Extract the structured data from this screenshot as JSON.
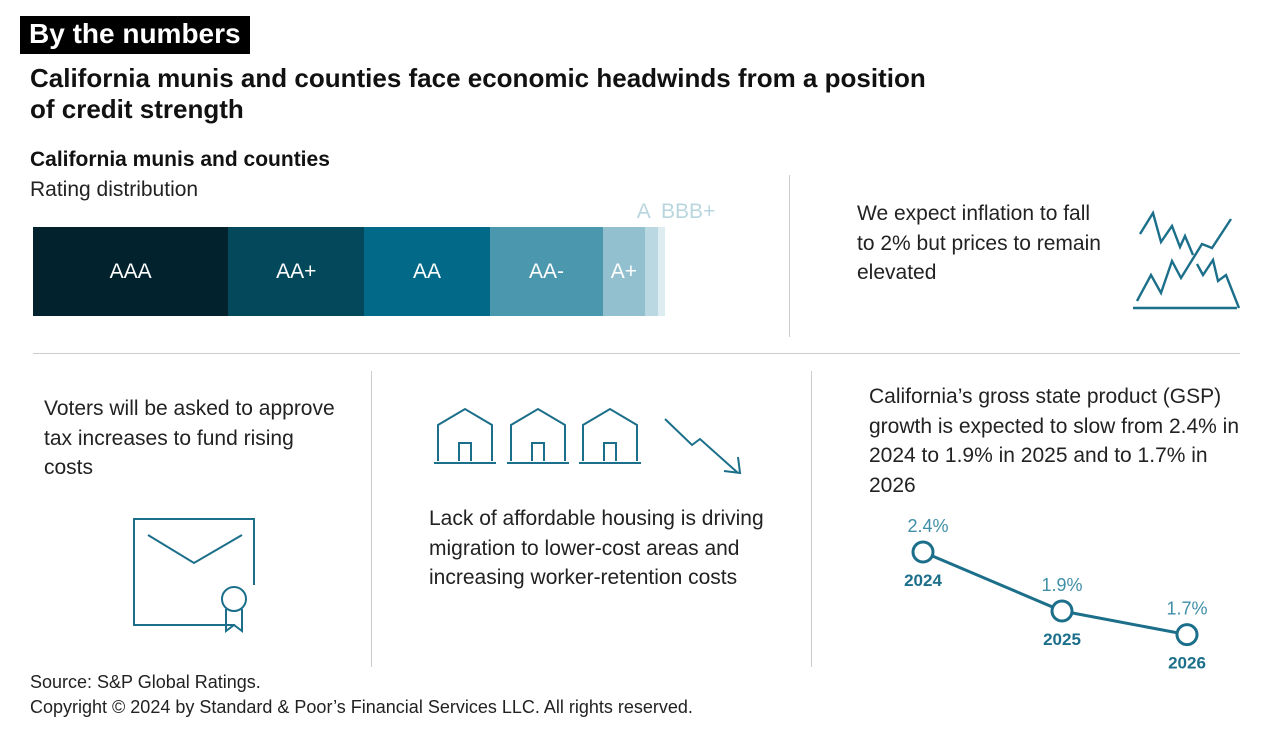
{
  "tag": "By the numbers",
  "headline": "California munis and counties face economic headwinds from a position of credit strength",
  "rating": {
    "title": "California munis and counties",
    "subtitle": "Rating distribution"
  },
  "inflation_text": "We expect inflation to fall to 2% but prices to remain elevated",
  "voters_text": "Voters will be asked to approve tax increases to fund rising costs",
  "housing_text": "Lack of affordable housing is driving migration to lower-cost areas and increasing worker-retention costs",
  "gsp_text": "California’s gross state product (GSP) growth is expected to slow from 2.4% in 2024 to 1.9% in 2025 and to 1.7% in 2026",
  "footer": {
    "source": "Source: S&P Global Ratings.",
    "copyright": "Copyright © 2024 by Standard & Poor’s Financial Services LLC. All rights reserved."
  },
  "colors": {
    "accent": "#1c6f8a"
  },
  "chart_data": [
    {
      "type": "bar",
      "stacked": true,
      "title": "Rating distribution",
      "unit": "percent (approx.)",
      "categories": [
        "AAA",
        "AA+",
        "AA",
        "AA-",
        "A+",
        "A",
        "BBB+"
      ],
      "values": [
        30.9,
        21.5,
        19.9,
        17.9,
        6.6,
        2.1,
        1.1
      ],
      "colors": [
        "#02222d",
        "#04485c",
        "#026a88",
        "#4b97ae",
        "#93c0ce",
        "#bad8e1",
        "#dcecf1"
      ]
    },
    {
      "type": "line",
      "title": "California GSP growth",
      "x": [
        "2024",
        "2025",
        "2026"
      ],
      "y": [
        2.4,
        1.9,
        1.7
      ],
      "labels": [
        "2.4%",
        "1.9%",
        "1.7%"
      ]
    }
  ]
}
